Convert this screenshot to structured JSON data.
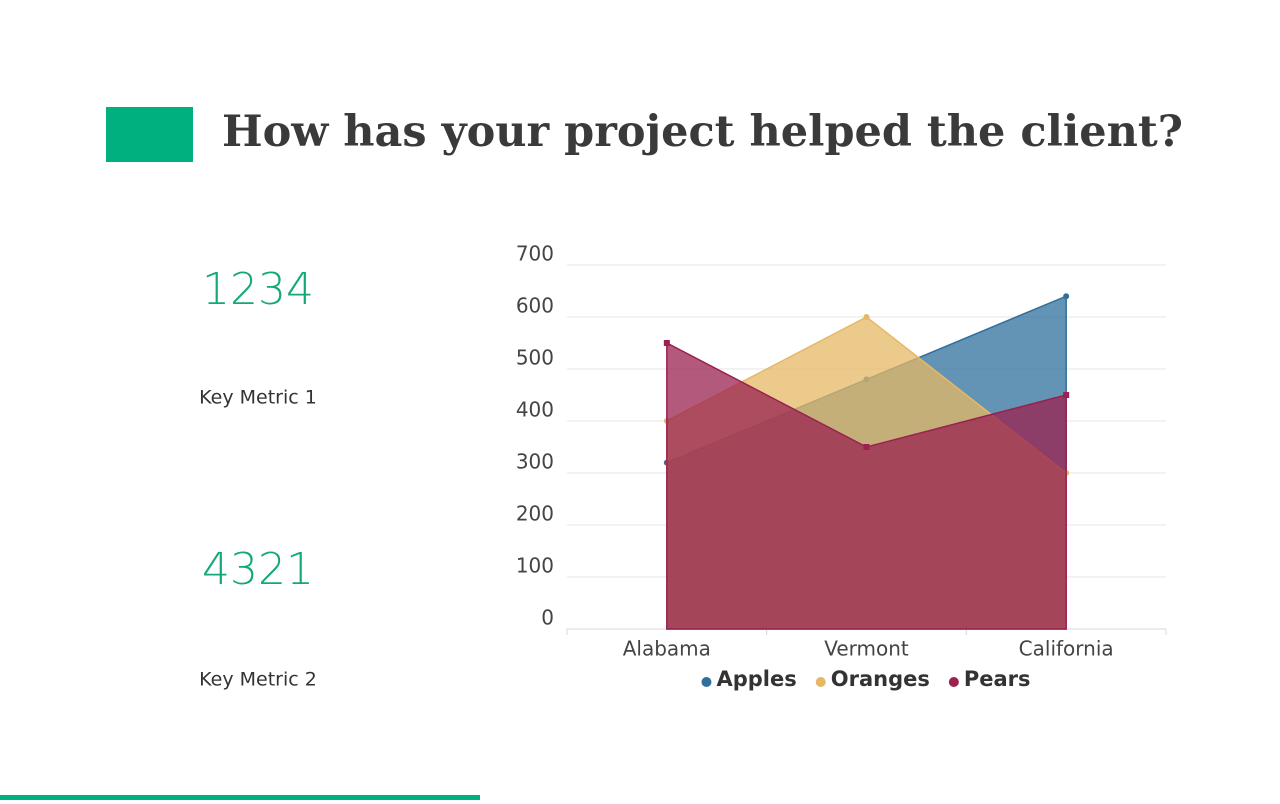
{
  "title": "How has your project helped the client?",
  "metrics": [
    {
      "value": 1234,
      "label": "Key Metric 1"
    },
    {
      "value": 4321,
      "label": "Key Metric 2"
    }
  ],
  "chart_data": {
    "type": "area",
    "categories": [
      "Alabama",
      "Vermont",
      "California"
    ],
    "series": [
      {
        "name": "Apples",
        "color": "#2f6f9c",
        "values": [
          320,
          480,
          640
        ]
      },
      {
        "name": "Oranges",
        "color": "#e6b866",
        "values": [
          400,
          600,
          300
        ]
      },
      {
        "name": "Pears",
        "color": "#9a2150",
        "values": [
          550,
          350,
          450
        ]
      }
    ],
    "ylim": [
      0,
      700
    ],
    "yticks": [
      0,
      100,
      200,
      300,
      400,
      500,
      600,
      700
    ],
    "grid": true,
    "legend": "bottom"
  }
}
